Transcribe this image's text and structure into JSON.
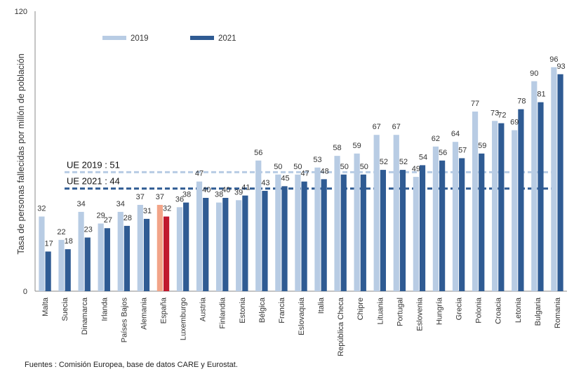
{
  "chart_data": {
    "type": "bar",
    "ylabel": "Tasa de personas fallecidas por millón de población",
    "xlabel": "",
    "ylim": [
      0,
      120
    ],
    "yticks": [
      0,
      120
    ],
    "grid": false,
    "legend_position": "top-left",
    "categories": [
      "Malta",
      "Suecia",
      "Dinamarca",
      "Irlanda",
      "Países Bajos",
      "Alemania",
      "España",
      "Luxemburgo",
      "Austria",
      "Finlandia",
      "Estonia",
      "Bélgica",
      "Francia",
      "Eslovaquia",
      "Italia",
      "República Checa",
      "Chipre",
      "Lituania",
      "Portugal",
      "Eslovenia",
      "Hungría",
      "Grecia",
      "Polonia",
      "Croacia",
      "Letonia",
      "Bulgaria",
      "Romania"
    ],
    "series": [
      {
        "name": "2019",
        "color": "#b8cce4",
        "highlight_color": "#f2a488",
        "values": [
          32,
          22,
          34,
          29,
          34,
          37,
          37,
          36,
          47,
          38,
          39,
          56,
          50,
          50,
          53,
          58,
          59,
          67,
          67,
          49,
          62,
          64,
          77,
          73,
          69,
          90,
          96
        ]
      },
      {
        "name": "2021",
        "color": "#2f5b93",
        "highlight_color": "#c0182e",
        "values": [
          17,
          18,
          23,
          27,
          28,
          31,
          32,
          38,
          40,
          40,
          41,
          43,
          45,
          47,
          48,
          50,
          50,
          52,
          52,
          54,
          56,
          57,
          59,
          72,
          78,
          81,
          93
        ]
      }
    ],
    "highlight_category": "España",
    "reference_lines": [
      {
        "label": "UE 2019 : 51",
        "value": 51,
        "color": "#b8cce4",
        "style": "dashed"
      },
      {
        "label": "UE 2021 : 44",
        "value": 44,
        "color": "#2f5b93",
        "style": "dashed"
      }
    ]
  },
  "source_note": "Fuentes : Comisión Europea, base de datos CARE y Eurostat."
}
